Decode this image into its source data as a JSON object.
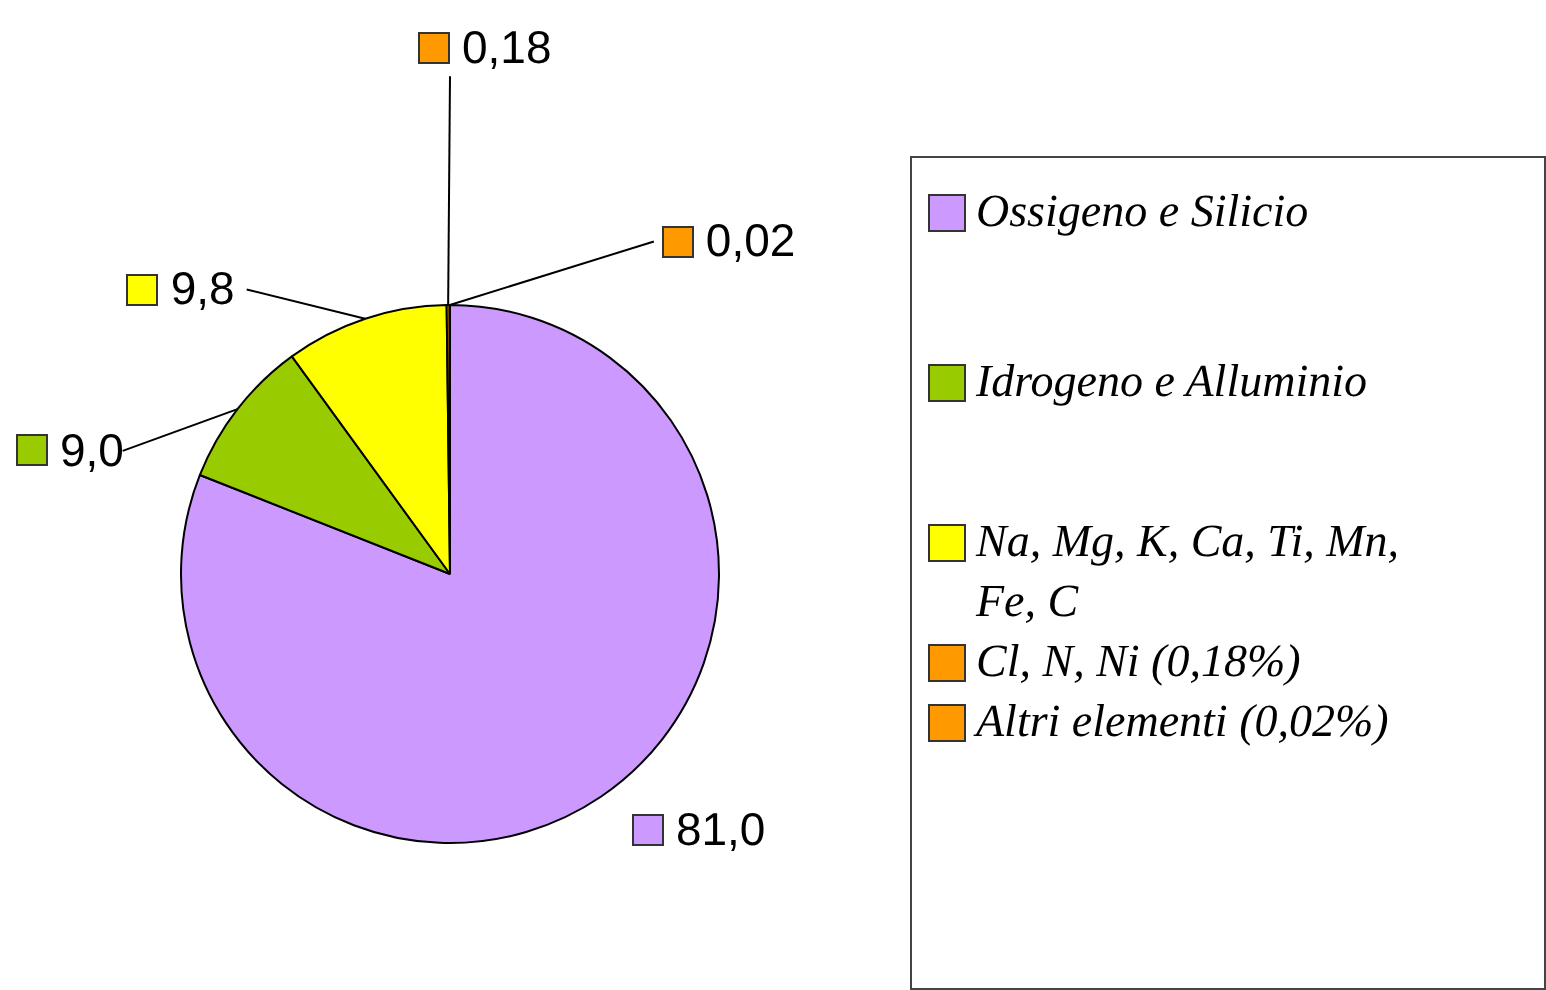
{
  "chart_data": {
    "type": "pie",
    "categories": [
      "Ossigeno e Silicio",
      "Idrogeno e Alluminio",
      "Na, Mg, K, Ca, Ti, Mn, Fe, C",
      "Cl, N, Ni (0,18%)",
      "Altri elementi (0,02%)"
    ],
    "values": [
      81.0,
      9.0,
      9.8,
      0.18,
      0.02
    ],
    "colors": [
      "#cc99ff",
      "#99cc00",
      "#ffff00",
      "#ff9900",
      "#ff9900"
    ],
    "value_labels": [
      "81,0",
      "9,0",
      "9,8",
      "0,18",
      "0,02"
    ],
    "legend": "right"
  }
}
